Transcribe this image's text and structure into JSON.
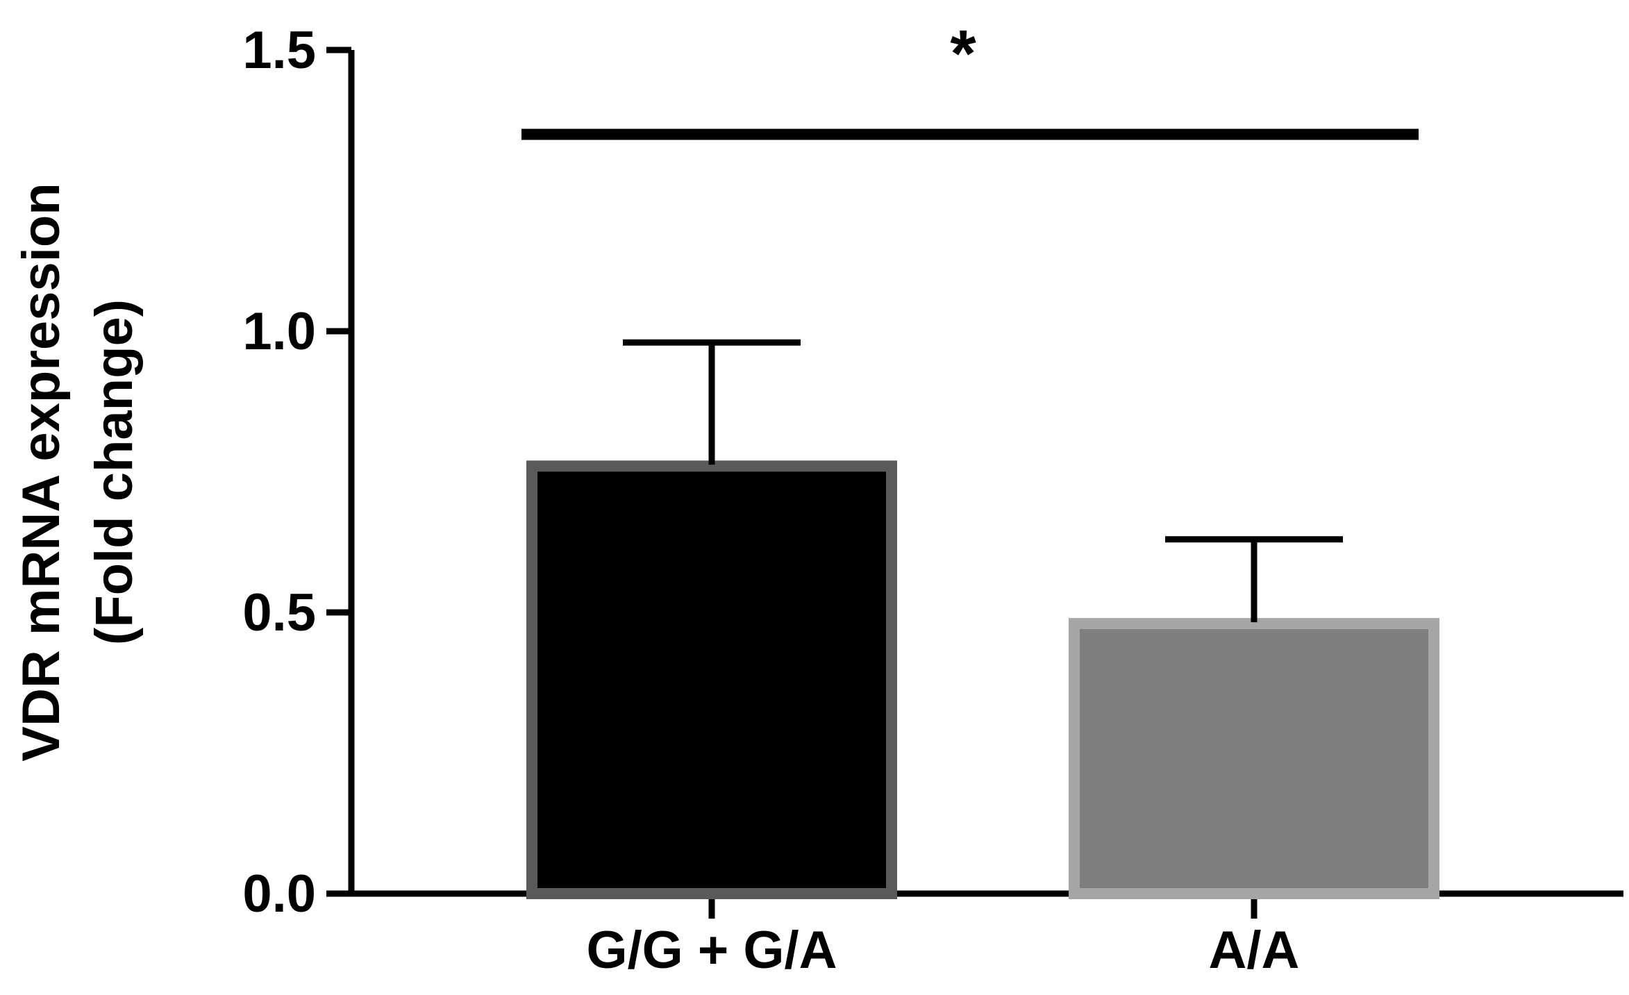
{
  "chart_data": {
    "type": "bar",
    "title": "",
    "xlabel": "",
    "ylabel": [
      "VDR mRNA expression",
      "(Fold change)"
    ],
    "ylim": [
      0,
      1.5
    ],
    "yticks": [
      0.0,
      0.5,
      1.0,
      1.5
    ],
    "ytick_labels": [
      "0.0",
      "0.5",
      "1.0",
      "1.5"
    ],
    "categories": [
      "G/G + G/A",
      "A/A"
    ],
    "values": [
      0.77,
      0.49
    ],
    "errors": [
      0.21,
      0.14
    ],
    "bar_fill_colors": [
      "#000000",
      "#7f7f7f"
    ],
    "bar_edge_colors": [
      "#5a5a5a",
      "#a6a6a6"
    ],
    "significance": {
      "label": "*",
      "from": 0,
      "to": 1,
      "y": 1.35
    },
    "grid": false,
    "legend": "none"
  }
}
